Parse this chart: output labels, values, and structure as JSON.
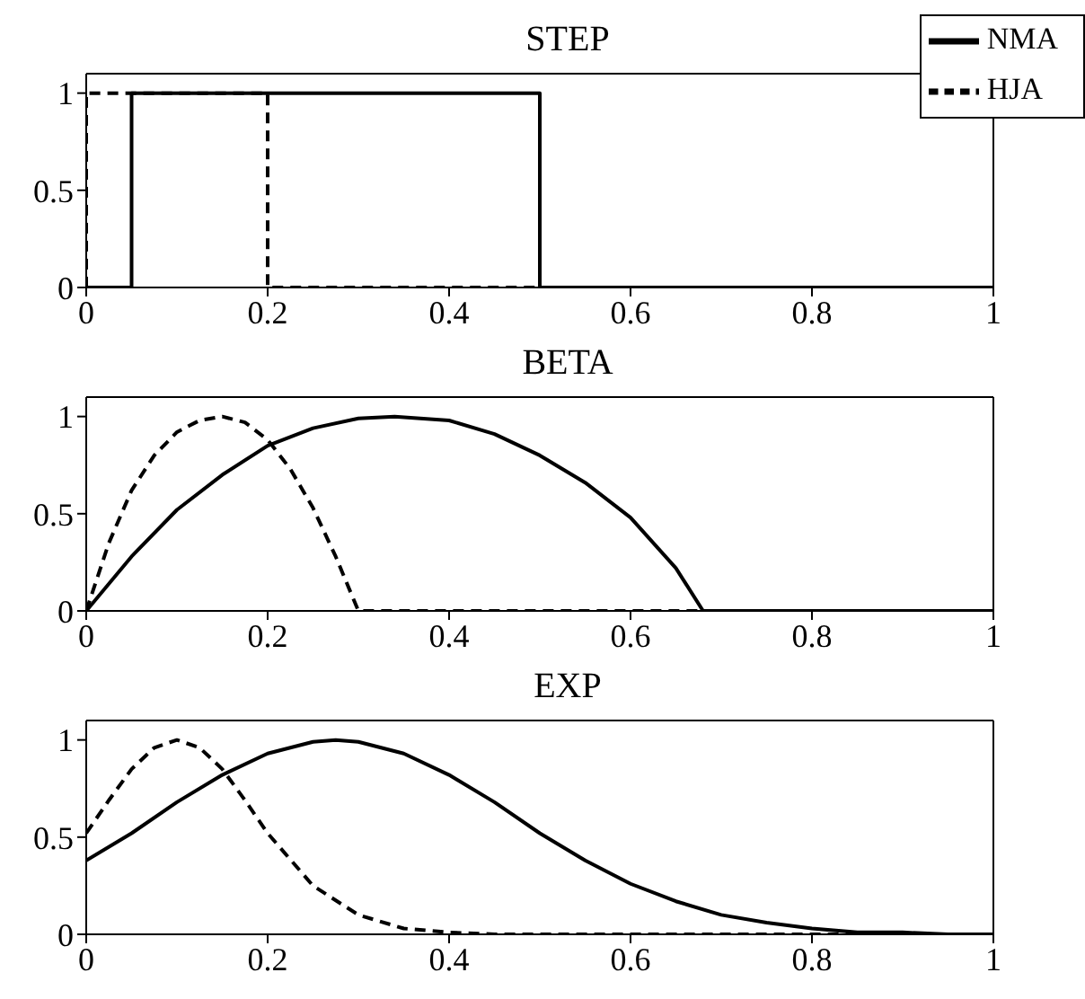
{
  "chart_data": [
    {
      "type": "line",
      "title": "STEP",
      "xlim": [
        0,
        1
      ],
      "xticks": [
        0,
        0.2,
        0.4,
        0.6,
        0.8,
        1
      ],
      "ylim": [
        0,
        1.1
      ],
      "yticks": [
        0,
        0.5,
        1
      ],
      "legend": "top right",
      "series": [
        {
          "name": "NMA",
          "color": "#000000",
          "line_style": "solid",
          "x": [
            0,
            0.05,
            0.05,
            0.5,
            0.5,
            1
          ],
          "values": [
            0,
            0,
            1,
            1,
            0,
            0
          ]
        },
        {
          "name": "HJA",
          "color": "#000000",
          "line_style": "dashed",
          "x": [
            0,
            0,
            0.2,
            0.2,
            1
          ],
          "values": [
            0,
            1,
            1,
            0,
            0
          ]
        }
      ]
    },
    {
      "type": "line",
      "title": "BETA",
      "xlim": [
        0,
        1
      ],
      "xticks": [
        0,
        0.2,
        0.4,
        0.6,
        0.8,
        1
      ],
      "ylim": [
        0,
        1.1
      ],
      "yticks": [
        0,
        0.5,
        1
      ],
      "series": [
        {
          "color": "#000000",
          "line_style": "solid",
          "x": [
            0,
            0.05,
            0.1,
            0.15,
            0.2,
            0.25,
            0.3,
            0.34,
            0.4,
            0.45,
            0.5,
            0.55,
            0.6,
            0.65,
            0.68,
            1
          ],
          "values": [
            0,
            0.28,
            0.52,
            0.7,
            0.85,
            0.94,
            0.99,
            1,
            0.98,
            0.91,
            0.8,
            0.66,
            0.48,
            0.22,
            0,
            0
          ]
        },
        {
          "color": "#000000",
          "line_style": "dashed",
          "x": [
            0,
            0.025,
            0.05,
            0.075,
            0.1,
            0.125,
            0.15,
            0.175,
            0.2,
            0.225,
            0.25,
            0.275,
            0.3,
            1
          ],
          "values": [
            0,
            0.35,
            0.62,
            0.8,
            0.92,
            0.98,
            1,
            0.97,
            0.88,
            0.73,
            0.53,
            0.28,
            0,
            0
          ]
        }
      ]
    },
    {
      "type": "line",
      "title": "EXP",
      "xlim": [
        0,
        1
      ],
      "xticks": [
        0,
        0.2,
        0.4,
        0.6,
        0.8,
        1
      ],
      "ylim": [
        0,
        1.1
      ],
      "yticks": [
        0,
        0.5,
        1
      ],
      "series": [
        {
          "color": "#000000",
          "line_style": "solid",
          "x": [
            0,
            0.05,
            0.1,
            0.15,
            0.2,
            0.25,
            0.275,
            0.3,
            0.35,
            0.4,
            0.45,
            0.5,
            0.55,
            0.6,
            0.65,
            0.7,
            0.75,
            0.8,
            0.85,
            0.9,
            0.95,
            1
          ],
          "values": [
            0.38,
            0.52,
            0.68,
            0.82,
            0.93,
            0.99,
            1,
            0.99,
            0.93,
            0.82,
            0.68,
            0.52,
            0.38,
            0.26,
            0.17,
            0.1,
            0.06,
            0.03,
            0.01,
            0.01,
            0,
            0
          ]
        },
        {
          "color": "#000000",
          "line_style": "dashed",
          "x": [
            0,
            0.025,
            0.05,
            0.075,
            0.1,
            0.125,
            0.15,
            0.175,
            0.2,
            0.25,
            0.3,
            0.35,
            0.4,
            0.45,
            1
          ],
          "values": [
            0.52,
            0.69,
            0.85,
            0.96,
            1,
            0.96,
            0.85,
            0.69,
            0.52,
            0.25,
            0.1,
            0.03,
            0.01,
            0,
            0
          ]
        }
      ]
    }
  ]
}
